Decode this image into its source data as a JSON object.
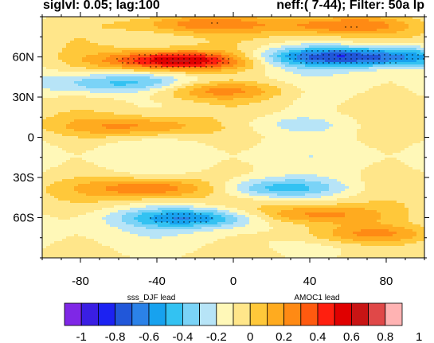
{
  "header": {
    "left_title": "siglvl: 0.05; lag:100",
    "right_title": "neff:( 7-44); Filter: 50a lp"
  },
  "colorbar": {
    "left_label": "sss_DJF lead",
    "right_label": "AMOC1 lead",
    "tick_labels": [
      "-1",
      "-0.8",
      "-0.6",
      "-0.4",
      "-0.2",
      "0",
      "0.2",
      "0.4",
      "0.6",
      "0.8",
      "1"
    ],
    "colors": [
      "#7f27e6",
      "#3a1ee3",
      "#1c22f2",
      "#2157d9",
      "#2b82e8",
      "#17a2ef",
      "#33c2f2",
      "#7ad3f7",
      "#b7e4f7",
      "#fff8b8",
      "#ffe68a",
      "#ffc83a",
      "#ffab1f",
      "#ff8a14",
      "#ff5a0f",
      "#ff1f0f",
      "#e00000",
      "#c81414",
      "#e04848",
      "#ffb3b3"
    ]
  },
  "chart_data": {
    "type": "heatmap",
    "title": "",
    "xlabel": "",
    "ylabel": "",
    "xlim": [
      -100,
      100
    ],
    "ylim": [
      -90,
      90
    ],
    "xticks": [
      -80,
      -40,
      0,
      40,
      80
    ],
    "xtick_labels": [
      "-80",
      "-40",
      "0",
      "40",
      "80"
    ],
    "yticks": [
      60,
      30,
      0,
      -30,
      -60
    ],
    "ytick_labels": [
      "60N",
      "30N",
      "0",
      "30S",
      "60S"
    ],
    "contour_levels": [
      -1,
      -0.9,
      -0.8,
      -0.7,
      -0.6,
      -0.5,
      -0.4,
      -0.3,
      -0.2,
      -0.1,
      0,
      0.1,
      0.2,
      0.3,
      0.4,
      0.5,
      0.6,
      0.7,
      0.8,
      0.9,
      1
    ],
    "features": [
      {
        "lag_center": -30,
        "lat_center": 57,
        "value": 0.75
      },
      {
        "lag_center": -20,
        "lat_center": 85,
        "value": 0.35
      },
      {
        "lag_center": 45,
        "lat_center": 60,
        "value": -0.5
      },
      {
        "lag_center": 85,
        "lat_center": 60,
        "value": -0.45
      },
      {
        "lag_center": 55,
        "lat_center": 84,
        "value": 0.4
      },
      {
        "lag_center": -10,
        "lat_center": 35,
        "value": 0.35
      },
      {
        "lag_center": -60,
        "lat_center": 40,
        "value": -0.3
      },
      {
        "lag_center": -50,
        "lat_center": 8,
        "value": 0.3
      },
      {
        "lag_center": 30,
        "lat_center": 10,
        "value": -0.15
      },
      {
        "lag_center": -40,
        "lat_center": -38,
        "value": 0.4
      },
      {
        "lag_center": 20,
        "lat_center": -38,
        "value": -0.4
      },
      {
        "lag_center": -20,
        "lat_center": -60,
        "value": -0.5
      },
      {
        "lag_center": 40,
        "lat_center": -58,
        "value": 0.4
      },
      {
        "lag_center": 70,
        "lat_center": -72,
        "value": 0.35
      }
    ]
  }
}
